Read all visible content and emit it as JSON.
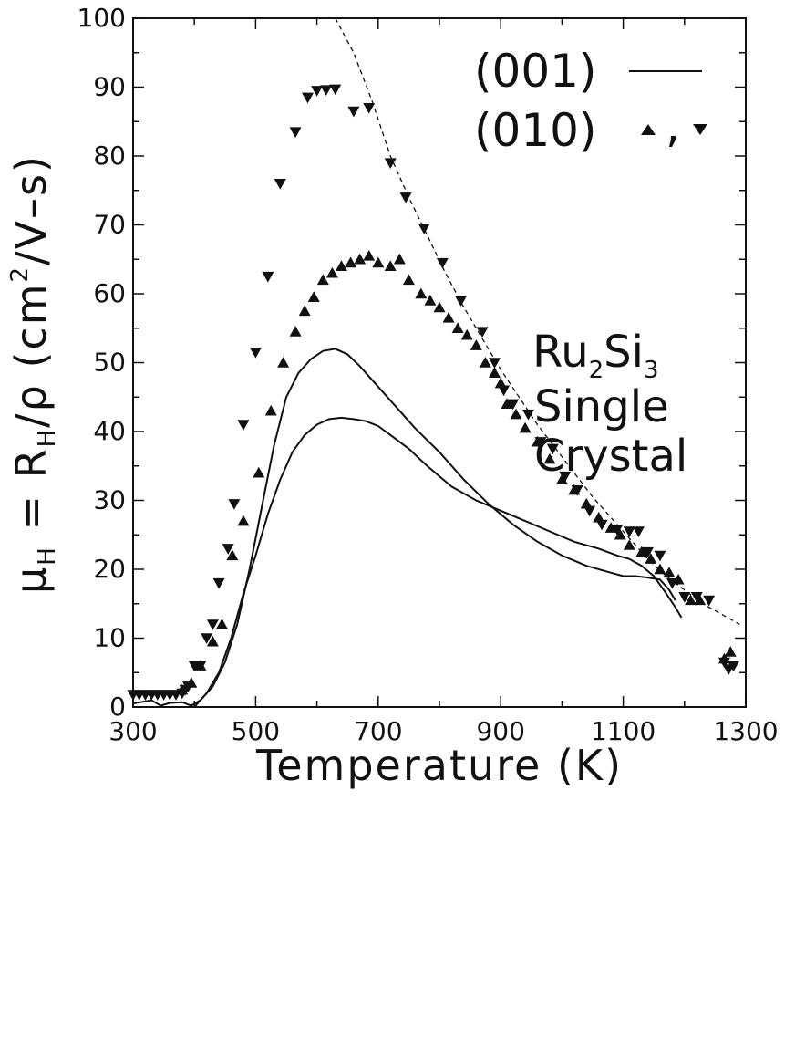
{
  "chart_data": {
    "type": "scatter",
    "xlabel": "Temperature (K)",
    "ylabel_parts": {
      "mu": "μ",
      "mu_sub": "H",
      "eq": " = R",
      "r_sub": "H",
      "rho": "/ρ (cm",
      "sup": "2",
      "tail": "/V–s)"
    },
    "xlim": [
      300,
      1300
    ],
    "ylim": [
      0,
      100
    ],
    "x_ticks": [
      "300",
      "500",
      "700",
      "900",
      "1100",
      "1300"
    ],
    "y_ticks": [
      "0",
      "10",
      "20",
      "30",
      "40",
      "50",
      "60",
      "70",
      "80",
      "90",
      "100"
    ],
    "annotation": {
      "line1_main": "Ru",
      "line1_sub1": "2",
      "line1_mid": "Si",
      "line1_sub2": "3",
      "line2": "Single",
      "line3": "Crystal"
    },
    "legend": {
      "entry1": "(001)",
      "entry2": "(010)",
      "entry2_sep": ","
    },
    "series": [
      {
        "name": "(010)",
        "marker": "triangle-down",
        "points": [
          [
            300,
            1.8
          ],
          [
            310,
            1.8
          ],
          [
            320,
            1.8
          ],
          [
            330,
            1.8
          ],
          [
            340,
            1.8
          ],
          [
            350,
            1.8
          ],
          [
            360,
            1.8
          ],
          [
            370,
            1.8
          ],
          [
            380,
            2
          ],
          [
            385,
            2.5
          ],
          [
            390,
            3
          ],
          [
            400,
            6
          ],
          [
            410,
            6
          ],
          [
            420,
            10
          ],
          [
            430,
            12
          ],
          [
            440,
            18
          ],
          [
            455,
            23
          ],
          [
            465,
            29.5
          ],
          [
            480,
            41
          ],
          [
            500,
            51.5
          ],
          [
            520,
            62.5
          ],
          [
            540,
            76
          ],
          [
            565,
            83.5
          ],
          [
            585,
            88.5
          ],
          [
            600,
            89.5
          ],
          [
            615,
            89.6
          ],
          [
            630,
            89.7
          ],
          [
            660,
            86.5
          ],
          [
            685,
            87
          ],
          [
            720,
            79
          ],
          [
            745,
            74
          ],
          [
            775,
            69.5
          ],
          [
            805,
            64.5
          ],
          [
            835,
            59
          ],
          [
            870,
            54.5
          ],
          [
            890,
            50
          ],
          [
            905,
            46
          ],
          [
            920,
            44
          ],
          [
            945,
            42.5
          ],
          [
            965,
            38.5
          ],
          [
            985,
            37.5
          ],
          [
            1005,
            33.5
          ],
          [
            1025,
            31.5
          ],
          [
            1045,
            28.5
          ],
          [
            1065,
            26.5
          ],
          [
            1090,
            25.8
          ],
          [
            1110,
            25.5
          ],
          [
            1125,
            25.5
          ],
          [
            1140,
            22.5
          ],
          [
            1160,
            22
          ],
          [
            1180,
            18
          ],
          [
            1200,
            16
          ],
          [
            1220,
            16
          ],
          [
            1240,
            15.5
          ],
          [
            1265,
            6.5
          ],
          [
            1272,
            5.5
          ],
          [
            1280,
            6
          ]
        ]
      },
      {
        "name": "(010)",
        "marker": "triangle-up",
        "points": [
          [
            380,
            2.5
          ],
          [
            395,
            3.5
          ],
          [
            410,
            6
          ],
          [
            430,
            9.5
          ],
          [
            445,
            12
          ],
          [
            462,
            22
          ],
          [
            480,
            27
          ],
          [
            505,
            34
          ],
          [
            525,
            43
          ],
          [
            545,
            50
          ],
          [
            565,
            54.5
          ],
          [
            580,
            57.5
          ],
          [
            595,
            59.5
          ],
          [
            610,
            62
          ],
          [
            625,
            63
          ],
          [
            640,
            64
          ],
          [
            655,
            64.5
          ],
          [
            670,
            65
          ],
          [
            685,
            65.5
          ],
          [
            700,
            64.5
          ],
          [
            720,
            64
          ],
          [
            735,
            65
          ],
          [
            750,
            62
          ],
          [
            770,
            60
          ],
          [
            785,
            59
          ],
          [
            800,
            58
          ],
          [
            815,
            56.5
          ],
          [
            830,
            55
          ],
          [
            845,
            54
          ],
          [
            860,
            52.5
          ],
          [
            875,
            50
          ],
          [
            890,
            48.5
          ],
          [
            900,
            47
          ],
          [
            910,
            44
          ],
          [
            925,
            42.5
          ],
          [
            940,
            40.5
          ],
          [
            960,
            38.5
          ],
          [
            980,
            36
          ],
          [
            1000,
            33
          ],
          [
            1020,
            31.5
          ],
          [
            1040,
            29.5
          ],
          [
            1060,
            27.5
          ],
          [
            1080,
            26
          ],
          [
            1095,
            25
          ],
          [
            1110,
            23.5
          ],
          [
            1130,
            22.5
          ],
          [
            1145,
            21.5
          ],
          [
            1160,
            20
          ],
          [
            1175,
            19.5
          ],
          [
            1190,
            18.5
          ],
          [
            1210,
            15.5
          ],
          [
            1225,
            15.5
          ],
          [
            1265,
            7
          ],
          [
            1275,
            8
          ]
        ]
      },
      {
        "name": "(001)",
        "type": "line",
        "points": [
          [
            300,
            0.5
          ],
          [
            330,
            1
          ],
          [
            345,
            0.2
          ],
          [
            360,
            0.6
          ],
          [
            380,
            0.7
          ],
          [
            395,
            0.2
          ],
          [
            410,
            1
          ],
          [
            430,
            3
          ],
          [
            450,
            6.5
          ],
          [
            470,
            12
          ],
          [
            490,
            20
          ],
          [
            510,
            29
          ],
          [
            530,
            38
          ],
          [
            550,
            45
          ],
          [
            570,
            48.5
          ],
          [
            590,
            50.5
          ],
          [
            610,
            51.7
          ],
          [
            630,
            52
          ],
          [
            650,
            51.2
          ],
          [
            670,
            49.5
          ],
          [
            700,
            46.5
          ],
          [
            730,
            43.5
          ],
          [
            760,
            40.5
          ],
          [
            800,
            37
          ],
          [
            840,
            33
          ],
          [
            880,
            29.5
          ],
          [
            920,
            26.5
          ],
          [
            960,
            24
          ],
          [
            1000,
            22
          ],
          [
            1040,
            20.5
          ],
          [
            1080,
            19.5
          ],
          [
            1100,
            19
          ],
          [
            1120,
            19
          ],
          [
            1140,
            18.8
          ],
          [
            1160,
            18.5
          ],
          [
            1175,
            17
          ],
          [
            1185,
            15.5
          ]
        ]
      },
      {
        "name": "(001)",
        "type": "line",
        "points": [
          [
            400,
            0
          ],
          [
            420,
            2
          ],
          [
            440,
            5
          ],
          [
            460,
            10
          ],
          [
            480,
            16.5
          ],
          [
            500,
            22
          ],
          [
            520,
            28
          ],
          [
            540,
            33
          ],
          [
            560,
            37
          ],
          [
            580,
            39.5
          ],
          [
            600,
            41
          ],
          [
            620,
            41.8
          ],
          [
            640,
            42
          ],
          [
            660,
            41.8
          ],
          [
            680,
            41.5
          ],
          [
            700,
            40.8
          ],
          [
            720,
            39.5
          ],
          [
            750,
            37.5
          ],
          [
            780,
            35
          ],
          [
            820,
            32
          ],
          [
            860,
            30
          ],
          [
            900,
            28.5
          ],
          [
            940,
            27
          ],
          [
            980,
            25.5
          ],
          [
            1020,
            24
          ],
          [
            1060,
            23
          ],
          [
            1090,
            22
          ],
          [
            1110,
            21.5
          ],
          [
            1130,
            20.5
          ],
          [
            1150,
            19
          ],
          [
            1170,
            16.5
          ],
          [
            1185,
            14.5
          ],
          [
            1195,
            13
          ]
        ]
      },
      {
        "type": "dashed-line",
        "points": [
          [
            630,
            100
          ],
          [
            660,
            95
          ],
          [
            690,
            88
          ],
          [
            720,
            80
          ],
          [
            750,
            74
          ],
          [
            780,
            68.5
          ],
          [
            810,
            63
          ],
          [
            840,
            58
          ],
          [
            870,
            53.5
          ],
          [
            900,
            49
          ],
          [
            930,
            45
          ],
          [
            960,
            41
          ],
          [
            990,
            37.5
          ],
          [
            1020,
            34
          ],
          [
            1050,
            30.5
          ],
          [
            1080,
            27.5
          ],
          [
            1110,
            24.5
          ],
          [
            1140,
            21.5
          ],
          [
            1170,
            19
          ],
          [
            1200,
            17
          ],
          [
            1230,
            15
          ],
          [
            1260,
            13.5
          ],
          [
            1290,
            12
          ]
        ]
      }
    ]
  }
}
